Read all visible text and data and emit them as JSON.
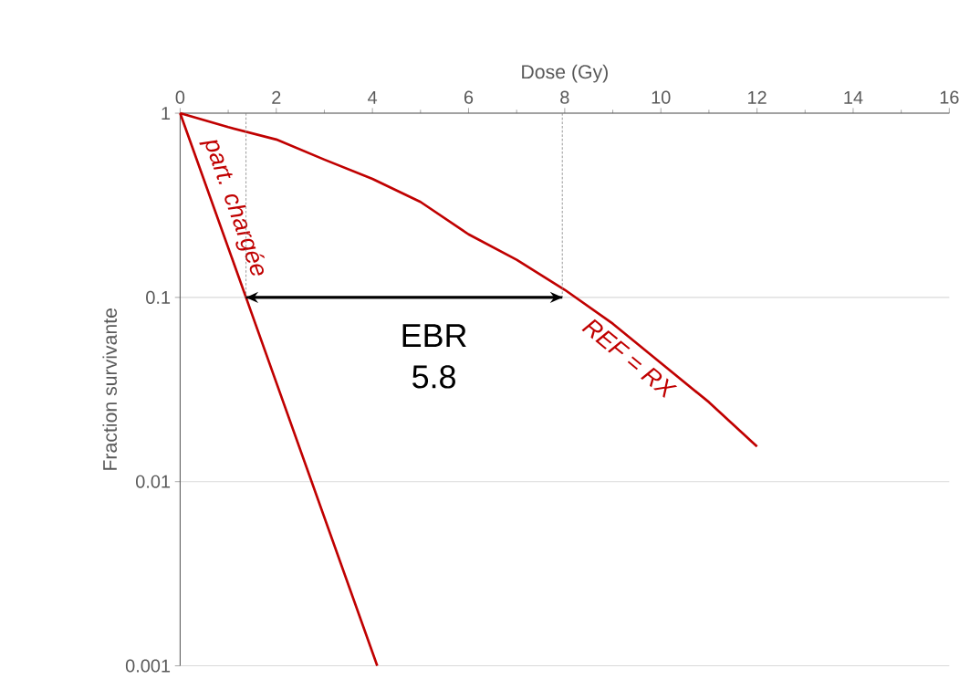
{
  "chart_data": {
    "type": "line",
    "xlabel": "Dose (Gy)",
    "ylabel": "Fraction survivante",
    "log": "y",
    "grid": "y",
    "xlim": [
      0,
      16
    ],
    "ylim": [
      0.001,
      1
    ],
    "xticks": [
      0,
      2,
      4,
      6,
      8,
      10,
      12,
      14,
      16
    ],
    "yticks": [
      1,
      0.1,
      0.01,
      0.001
    ],
    "series": [
      {
        "name": "REF = RX",
        "color": "#c00000",
        "x": [
          0,
          1,
          2,
          3,
          4,
          5,
          6,
          7,
          8,
          9,
          10,
          11,
          12
        ],
        "values": [
          1,
          0.84,
          0.72,
          0.56,
          0.44,
          0.33,
          0.22,
          0.16,
          0.11,
          0.072,
          0.044,
          0.027,
          0.0155
        ]
      },
      {
        "name": "part. chargée",
        "color": "#c00000",
        "x": [
          0,
          1.37,
          4.1
        ],
        "values": [
          1,
          0.1,
          0.001
        ]
      },
      {
        "color": "#808080",
        "line_style": "dashed",
        "x": [
          1.37,
          1.37
        ],
        "values": [
          1,
          0.1
        ]
      },
      {
        "color": "#808080",
        "line_style": "dashed",
        "x": [
          7.95,
          7.95
        ],
        "values": [
          1,
          0.1
        ]
      },
      {
        "color": "#000000",
        "x": [
          1.37,
          7.95
        ],
        "values": [
          0.1,
          0.1
        ]
      }
    ],
    "annotations": [
      "EBR 5.8"
    ]
  }
}
